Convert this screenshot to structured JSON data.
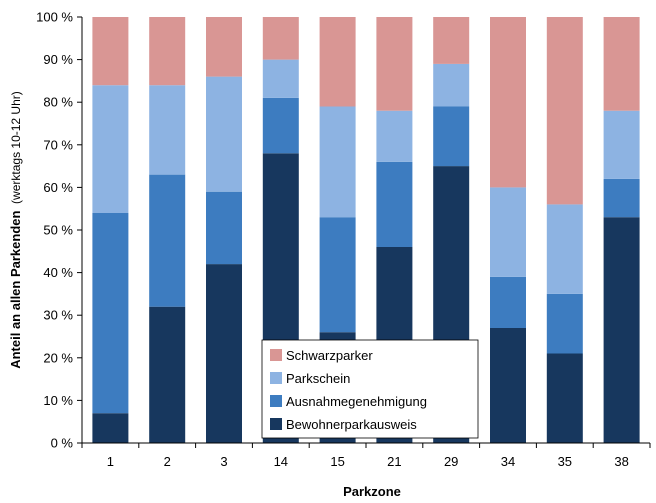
{
  "chart_data": {
    "type": "bar",
    "stacked": true,
    "categories": [
      "1",
      "2",
      "3",
      "14",
      "15",
      "21",
      "29",
      "34",
      "35",
      "38"
    ],
    "series": [
      {
        "name": "Bewohnerparkausweis",
        "color": "#17375e",
        "values": [
          7,
          32,
          42,
          68,
          26,
          46,
          65,
          27,
          21,
          53
        ]
      },
      {
        "name": "Ausnahmegenehmigung",
        "color": "#3d7cc0",
        "values": [
          47,
          31,
          17,
          13,
          27,
          20,
          14,
          12,
          14,
          9
        ]
      },
      {
        "name": "Parkschein",
        "color": "#8db3e2",
        "values": [
          30,
          21,
          27,
          9,
          26,
          12,
          10,
          21,
          21,
          16
        ]
      },
      {
        "name": "Schwarzparker",
        "color": "#d99694",
        "values": [
          16,
          16,
          14,
          10,
          21,
          22,
          11,
          40,
          44,
          22
        ]
      }
    ],
    "y_ticks": [
      "0 %",
      "10 %",
      "20 %",
      "30 %",
      "40 %",
      "50 %",
      "60 %",
      "70 %",
      "80 %",
      "90 %",
      "100 %"
    ],
    "ylim": [
      0,
      100
    ],
    "xlabel": "Parkzone",
    "ylabel_bold": "Anteil an allen Parkenden",
    "ylabel_normal": "(werktags 10-12 Uhr)",
    "legend_position": "bottom-center",
    "legend_order": [
      "Schwarzparker",
      "Parkschein",
      "Ausnahmegenehmigung",
      "Bewohnerparkausweis"
    ],
    "grid": false
  }
}
